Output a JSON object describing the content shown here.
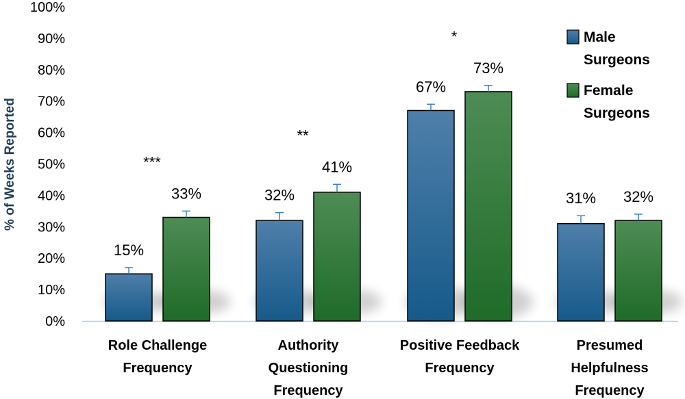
{
  "chart_data": {
    "type": "bar",
    "title": "",
    "xlabel": "",
    "ylabel": "% of Weeks Reported",
    "ylim": [
      0,
      100
    ],
    "yticks": [
      "0%",
      "10%",
      "20%",
      "30%",
      "40%",
      "50%",
      "60%",
      "70%",
      "80%",
      "90%",
      "100%"
    ],
    "categories": [
      [
        "Role Challenge",
        "Frequency"
      ],
      [
        "Authority",
        "Questioning",
        "Frequency"
      ],
      [
        "Positive Feedback",
        "Frequency"
      ],
      [
        "Presumed",
        "Helpfulness",
        "Frequency"
      ]
    ],
    "series": [
      {
        "name": "Male Surgeons",
        "legend_lines": [
          "Male",
          "Surgeons"
        ],
        "color": "#1f5a86",
        "values": [
          15,
          32,
          67,
          31
        ],
        "labels": [
          "15%",
          "32%",
          "67%",
          "31%"
        ],
        "errors": [
          2,
          2.5,
          2,
          2.5
        ]
      },
      {
        "name": "Female Surgeons",
        "legend_lines": [
          "Female",
          "Surgeons"
        ],
        "color": "#2a7a33",
        "values": [
          33,
          41,
          73,
          32
        ],
        "labels": [
          "33%",
          "41%",
          "73%",
          "32%"
        ],
        "errors": [
          2,
          2.5,
          2,
          2
        ]
      }
    ],
    "significance": [
      "***",
      "**",
      "*",
      ""
    ],
    "legend_position": "top-right",
    "grid": false
  }
}
